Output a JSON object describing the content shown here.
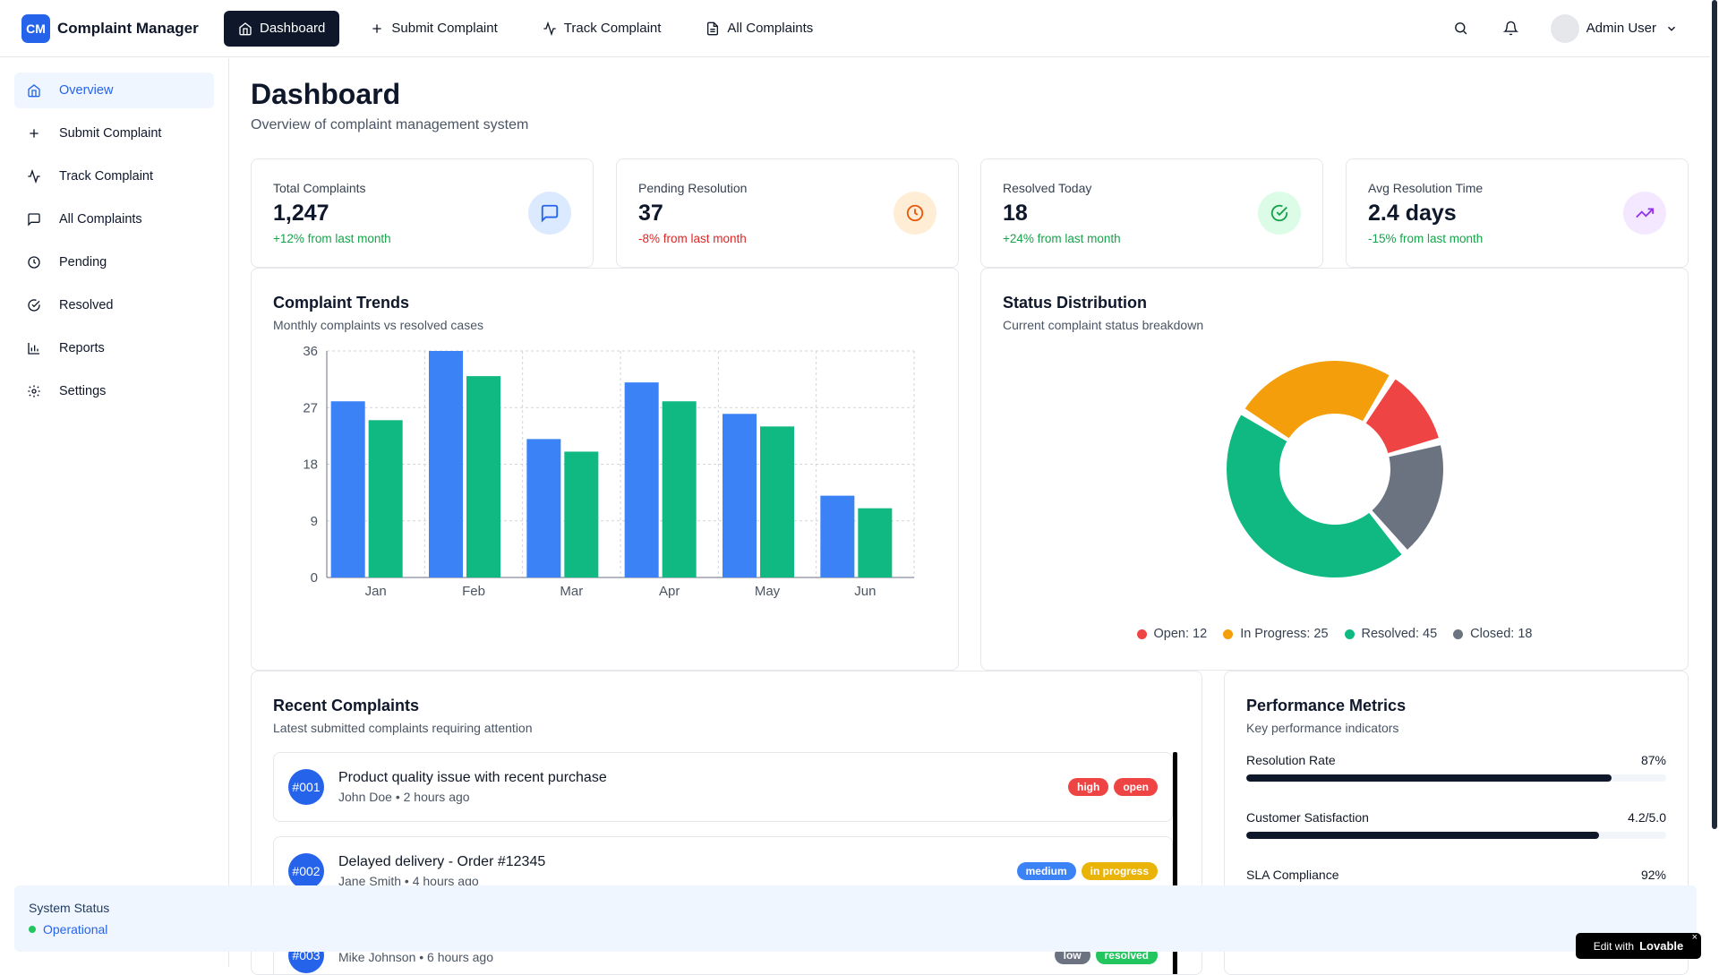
{
  "app": {
    "logo_mark": "CM",
    "name": "Complaint Manager"
  },
  "topnav": [
    {
      "label": "Dashboard",
      "icon": "home-icon",
      "active": true
    },
    {
      "label": "Submit Complaint",
      "icon": "plus-icon"
    },
    {
      "label": "Track Complaint",
      "icon": "activity-icon"
    },
    {
      "label": "All Complaints",
      "icon": "file-icon"
    }
  ],
  "user": {
    "name": "Admin User"
  },
  "sidebar": {
    "items": [
      {
        "label": "Overview",
        "icon": "home-icon",
        "active": true
      },
      {
        "label": "Submit Complaint",
        "icon": "plus-icon"
      },
      {
        "label": "Track Complaint",
        "icon": "activity-icon"
      },
      {
        "label": "All Complaints",
        "icon": "message-icon"
      },
      {
        "label": "Pending",
        "icon": "clock-icon"
      },
      {
        "label": "Resolved",
        "icon": "check-circle-icon"
      },
      {
        "label": "Reports",
        "icon": "bar-chart-icon"
      },
      {
        "label": "Settings",
        "icon": "gear-icon"
      }
    ],
    "status": {
      "title": "System Status",
      "value": "Operational",
      "color": "#22c55e"
    }
  },
  "page": {
    "title": "Dashboard",
    "subtitle": "Overview of complaint management system"
  },
  "stats": [
    {
      "label": "Total Complaints",
      "value": "1,247",
      "change": "+12% from last month",
      "change_color": "#16a34a",
      "icon": "message-icon",
      "icon_bg": "#dbeafe",
      "icon_color": "#2563eb"
    },
    {
      "label": "Pending Resolution",
      "value": "37",
      "change": "-8% from last month",
      "change_color": "#dc2626",
      "icon": "clock-icon",
      "icon_bg": "#ffedd5",
      "icon_color": "#ea580c"
    },
    {
      "label": "Resolved Today",
      "value": "18",
      "change": "+24% from last month",
      "change_color": "#16a34a",
      "icon": "check-circle-icon",
      "icon_bg": "#dcfce7",
      "icon_color": "#16a34a"
    },
    {
      "label": "Avg Resolution Time",
      "value": "2.4 days",
      "change": "-15% from last month",
      "change_color": "#16a34a",
      "icon": "trending-up-icon",
      "icon_bg": "#f3e8ff",
      "icon_color": "#9333ea"
    }
  ],
  "trends": {
    "title": "Complaint Trends",
    "subtitle": "Monthly complaints vs resolved cases"
  },
  "status_dist": {
    "title": "Status Distribution",
    "subtitle": "Current complaint status breakdown"
  },
  "chart_data": [
    {
      "type": "bar",
      "title": "Complaint Trends",
      "categories": [
        "Jan",
        "Feb",
        "Mar",
        "Apr",
        "May",
        "Jun"
      ],
      "series": [
        {
          "values": [
            28,
            36,
            22,
            31,
            26,
            13
          ],
          "color": "#3b82f6"
        },
        {
          "values": [
            25,
            32,
            20,
            28,
            24,
            11
          ],
          "color": "#10b981"
        }
      ],
      "yticks": [
        0,
        9,
        18,
        27,
        36
      ],
      "ylim": [
        0,
        36
      ],
      "grid": true
    },
    {
      "type": "pie",
      "title": "Status Distribution",
      "slices": [
        {
          "label": "Open: 12",
          "value": 12,
          "color": "#ef4444"
        },
        {
          "label": "In Progress: 25",
          "value": 25,
          "color": "#f59e0b"
        },
        {
          "label": "Resolved: 45",
          "value": 45,
          "color": "#10b981"
        },
        {
          "label": "Closed: 18",
          "value": 18,
          "color": "#6b7280"
        }
      ],
      "legend": "bottom"
    }
  ],
  "recent": {
    "title": "Recent Complaints",
    "subtitle": "Latest submitted complaints requiring attention",
    "items": [
      {
        "id": "#001",
        "title": "Product quality issue with recent purchase",
        "meta": "John Doe • 2 hours ago",
        "priority": "high",
        "priority_color": "#ef4444",
        "status": "open",
        "status_color": "#ef4444"
      },
      {
        "id": "#002",
        "title": "Delayed delivery - Order #12345",
        "meta": "Jane Smith • 4 hours ago",
        "priority": "medium",
        "priority_color": "#3b82f6",
        "status": "in progress",
        "status_color": "#eab308"
      },
      {
        "id": "#003",
        "title": "",
        "meta": "Mike Johnson • 6 hours ago",
        "priority": "low",
        "priority_color": "#6b7280",
        "status": "resolved",
        "status_color": "#22c55e"
      }
    ]
  },
  "performance": {
    "title": "Performance Metrics",
    "subtitle": "Key performance indicators",
    "metrics": [
      {
        "label": "Resolution Rate",
        "value": "87%",
        "fill": 87
      },
      {
        "label": "Customer Satisfaction",
        "value": "4.2/5.0",
        "fill": 84
      },
      {
        "label": "SLA Compliance",
        "value": "92%",
        "fill": 92
      }
    ]
  },
  "badge": {
    "prefix": "Edit with",
    "brand": "Lovable"
  }
}
